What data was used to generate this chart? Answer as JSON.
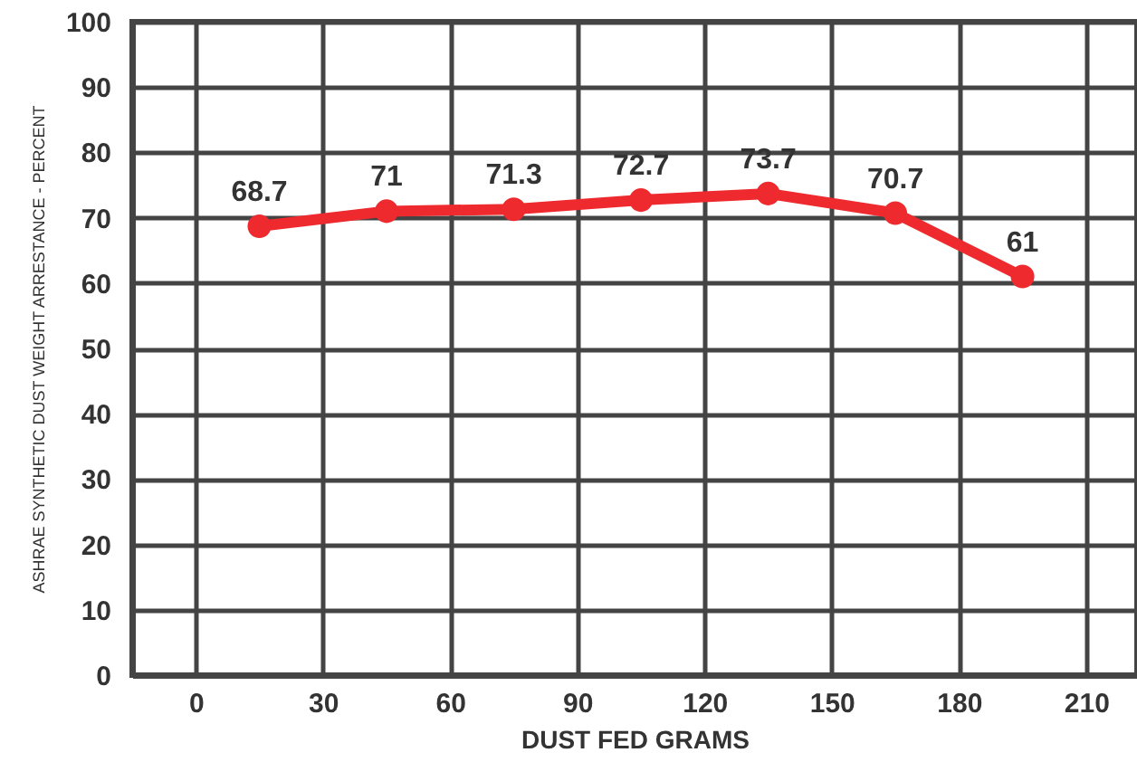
{
  "chart_data": {
    "type": "line",
    "xlabel": "DUST FED GRAMS",
    "ylabel": "ASHRAE SYNTHETIC DUST WEIGHT ARRESTANCE - PERCENT",
    "x": [
      15,
      45,
      75,
      105,
      135,
      165,
      195
    ],
    "series": [
      {
        "color": "#ee2a2e",
        "values": [
          68.7,
          71,
          71.3,
          72.7,
          73.7,
          70.7,
          61
        ]
      }
    ],
    "xlim": [
      -15,
      222
    ],
    "xticks": [
      0,
      30,
      60,
      90,
      120,
      150,
      180,
      210
    ],
    "ylim": [
      0,
      100
    ],
    "yticks": [
      0,
      10,
      20,
      30,
      40,
      50,
      60,
      70,
      80,
      90,
      100
    ],
    "grid": true,
    "marker": "circle",
    "line_style": "solid",
    "data_labels": true
  }
}
